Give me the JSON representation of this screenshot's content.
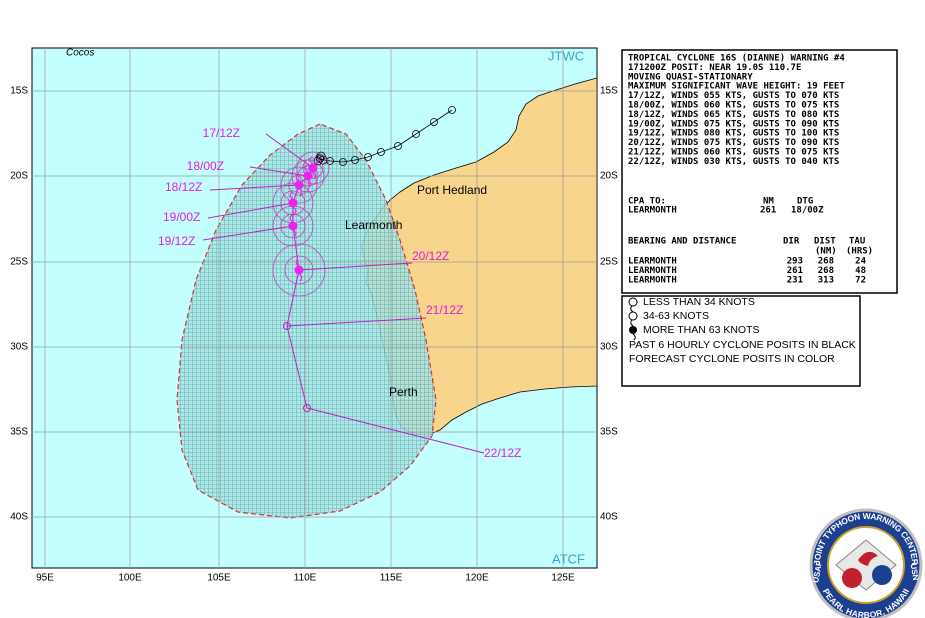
{
  "map": {
    "corner_labels": [
      "Cocos",
      "JTWC",
      "ATCF"
    ],
    "lat_labels": [
      "15S",
      "20S",
      "25S",
      "30S",
      "35S",
      "40S"
    ],
    "lon_labels": [
      "95E",
      "100E",
      "105E",
      "110E",
      "115E",
      "120E",
      "125E"
    ],
    "places": [
      "Port Hedland",
      "Learmonth",
      "Perth"
    ],
    "forecast_labels": [
      "17/12Z",
      "18/00Z",
      "18/12Z",
      "19/00Z",
      "19/12Z",
      "20/12Z",
      "21/12Z",
      "22/12Z"
    ]
  },
  "warning": {
    "lines": [
      "TROPICAL CYCLONE 16S (DIANNE) WARNING #4",
      "171200Z POSIT: NEAR 19.0S 110.7E",
      "MOVING QUASI-STATIONARY",
      "MAXIMUM SIGNIFICANT WAVE HEIGHT: 19 FEET",
      "17/12Z, WINDS 055 KTS, GUSTS TO 070 KTS",
      "18/00Z, WINDS 060 KTS, GUSTS TO 075 KTS",
      "18/12Z, WINDS 065 KTS, GUSTS TO 080 KTS",
      "19/00Z, WINDS 075 KTS, GUSTS TO 090 KTS",
      "19/12Z, WINDS 080 KTS, GUSTS TO 100 KTS",
      "20/12Z, WINDS 075 KTS, GUSTS TO 090 KTS",
      "21/12Z, WINDS 060 KTS, GUSTS TO 075 KTS",
      "22/12Z, WINDS 030 KTS, GUSTS TO 040 KTS"
    ],
    "cpa": {
      "title": "CPA TO:",
      "headers": [
        "NM",
        "DTG"
      ],
      "row": [
        "LEARMONTH",
        "261",
        "18/00Z"
      ]
    },
    "bearing": {
      "title": "BEARING AND DISTANCE",
      "headers": [
        "DIR",
        "DIST",
        "TAU"
      ],
      "subheaders": [
        "(NM)",
        "(HRS)"
      ],
      "rows": [
        [
          "LEARMONTH",
          "293",
          "268",
          "24"
        ],
        [
          "LEARMONTH",
          "261",
          "268",
          "48"
        ],
        [
          "LEARMONTH",
          "231",
          "313",
          "72"
        ]
      ]
    }
  },
  "legend": {
    "items": [
      "LESS THAN 34 KNOTS",
      "34-63 KNOTS",
      "MORE THAN 63 KNOTS"
    ],
    "notes": [
      "PAST 6 HOURLY CYCLONE POSITS IN BLACK",
      "FORECAST CYCLONE POSITS IN COLOR"
    ]
  },
  "logo": {
    "top": "JOINT TYPHOON WARNING CENTER",
    "bottom": "PEARL HARBOR, HAWAII",
    "left": "USAF",
    "right": "USN"
  }
}
